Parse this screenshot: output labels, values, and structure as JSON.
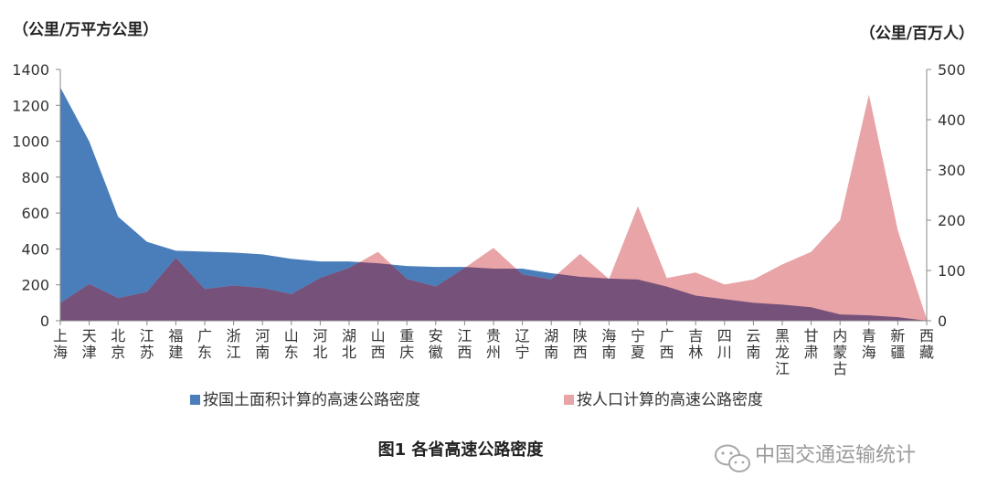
{
  "chart_data": {
    "type": "area",
    "categories": [
      "上海",
      "天津",
      "北京",
      "江苏",
      "福建",
      "广东",
      "浙江",
      "河南",
      "山东",
      "河北",
      "湖北",
      "山西",
      "重庆",
      "安徽",
      "江西",
      "贵州",
      "辽宁",
      "湖南",
      "陕西",
      "海南",
      "宁夏",
      "广西",
      "吉林",
      "四川",
      "云南",
      "黑龙江",
      "甘肃",
      "内蒙古",
      "青海",
      "新疆",
      "西藏"
    ],
    "ylabel_left": "（公里/万平方公里）",
    "ylabel_right": "（公里/百万人）",
    "ylim_left": [
      0,
      1400
    ],
    "ylim_right": [
      0,
      500
    ],
    "yticks_left": [
      0,
      200,
      400,
      600,
      800,
      1000,
      1200,
      1400
    ],
    "yticks_right": [
      0,
      100,
      200,
      300,
      400,
      500
    ],
    "grid": false,
    "legend_position": "bottom",
    "series": [
      {
        "name": "按国土面积计算的高速公路密度",
        "axis": "left",
        "color": "#4a7ebb",
        "values": [
          1300,
          1000,
          580,
          440,
          390,
          385,
          380,
          370,
          345,
          330,
          330,
          320,
          305,
          300,
          300,
          290,
          290,
          265,
          245,
          235,
          230,
          190,
          140,
          120,
          100,
          90,
          75,
          35,
          30,
          20,
          0
        ]
      },
      {
        "name": "按人口计算的高速公路密度",
        "axis": "right",
        "color": "#e8a4a6",
        "values": [
          35,
          73,
          45,
          57,
          125,
          63,
          70,
          65,
          53,
          85,
          105,
          137,
          83,
          68,
          105,
          145,
          92,
          82,
          133,
          83,
          228,
          85,
          96,
          72,
          82,
          112,
          137,
          200,
          450,
          180,
          3
        ]
      }
    ]
  },
  "legend": {
    "item1": "按国土面积计算的高速公路密度",
    "item2": "按人口计算的高速公路密度"
  },
  "caption": "图1  各省高速公路密度",
  "watermark": "中国交通运输统计",
  "colors": {
    "overlap": "#76517a",
    "axis": "#888888"
  }
}
